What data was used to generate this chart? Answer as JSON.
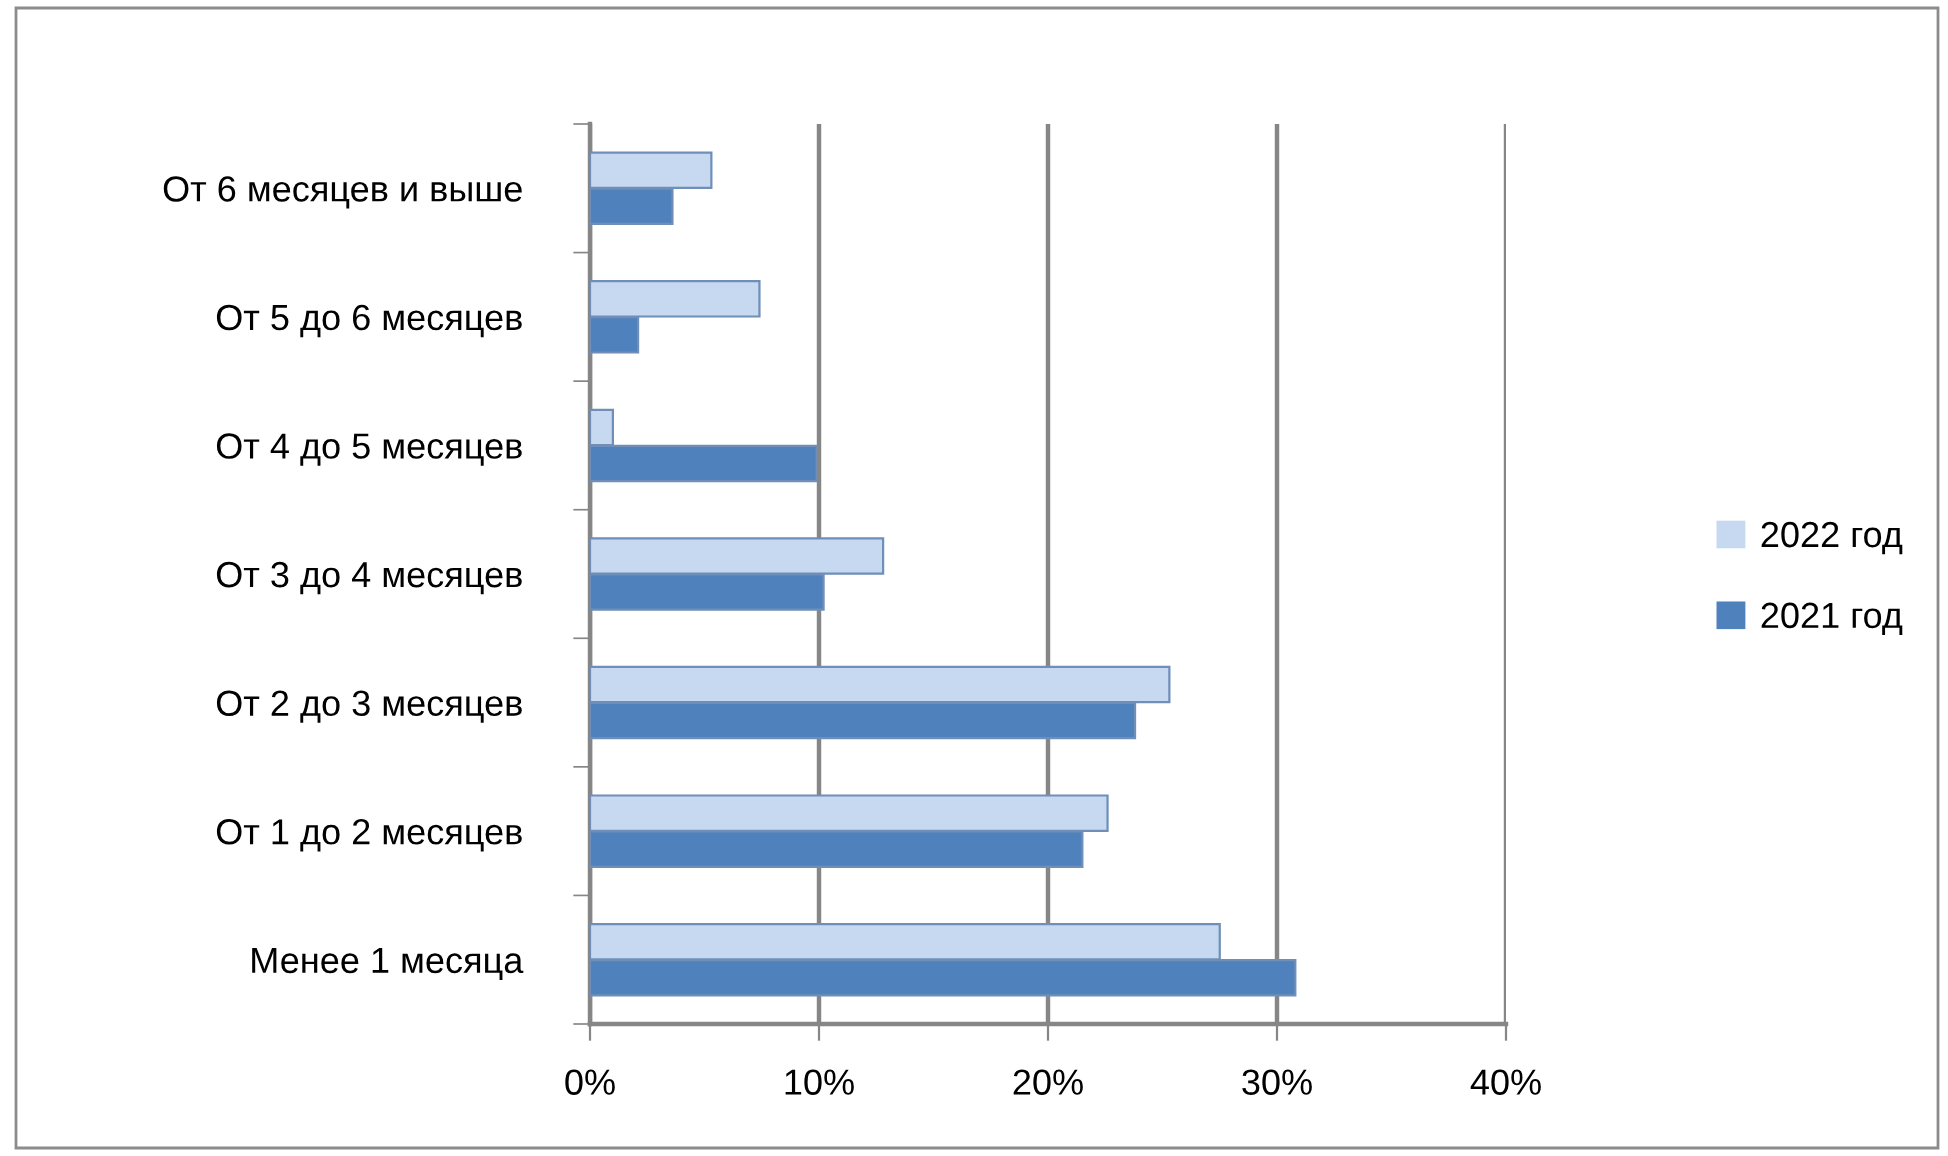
{
  "chart_data": {
    "type": "bar",
    "orientation": "horizontal",
    "categories": [
      "От 6 месяцев и выше",
      "От 5 до 6 месяцев",
      "От 4 до 5 месяцев",
      "От 3 до 4 месяцев",
      "От 2 до 3 месяцев",
      "От 1 до 2 месяцев",
      "Менее 1 месяца"
    ],
    "series": [
      {
        "name": "2022 год",
        "color": "#c6d9f1",
        "values": [
          5.3,
          7.4,
          1.0,
          12.8,
          25.3,
          22.6,
          27.5
        ]
      },
      {
        "name": "2021 год",
        "color": "#4f81bd",
        "values": [
          3.6,
          2.1,
          9.9,
          10.2,
          23.8,
          21.5,
          30.8
        ]
      }
    ],
    "xlim": [
      0,
      40
    ],
    "xticks": [
      {
        "value": 0,
        "label": "0%"
      },
      {
        "value": 10,
        "label": "10%"
      },
      {
        "value": 20,
        "label": "20%"
      },
      {
        "value": 30,
        "label": "30%"
      },
      {
        "value": 40,
        "label": "40%"
      }
    ],
    "grid": "x",
    "legend": "right"
  }
}
